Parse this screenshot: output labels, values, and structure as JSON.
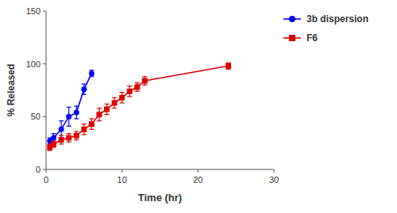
{
  "chart_data": {
    "type": "line",
    "x_label": "Time (hr)",
    "y_label": "% Released",
    "xlim": [
      0,
      30
    ],
    "ylim": [
      0,
      150
    ],
    "xticks": [
      0,
      10,
      20,
      30
    ],
    "yticks": [
      0,
      50,
      100,
      150
    ],
    "grid": false,
    "legend": "right",
    "series": [
      {
        "name": "3b dispersion",
        "color": "#0000ff",
        "marker": "circle",
        "line_style": "solid",
        "x": [
          0.5,
          1,
          2,
          3,
          4,
          5,
          6
        ],
        "values": [
          27,
          30,
          38,
          50,
          54,
          76,
          91
        ],
        "errors": [
          3,
          4,
          8,
          9,
          6,
          5,
          3
        ]
      },
      {
        "name": "F6",
        "color": "#dd0000",
        "marker": "square",
        "line_style": "solid",
        "x": [
          0.5,
          1,
          2,
          3,
          4,
          5,
          6,
          7,
          8,
          9,
          10,
          11,
          12,
          13,
          24
        ],
        "values": [
          21,
          24,
          28,
          30,
          32,
          38,
          43,
          52,
          57,
          63,
          68,
          74,
          78,
          84,
          98
        ],
        "errors": [
          3,
          3,
          4,
          4,
          4,
          5,
          5,
          6,
          5,
          5,
          5,
          5,
          4,
          4,
          3
        ]
      }
    ]
  }
}
